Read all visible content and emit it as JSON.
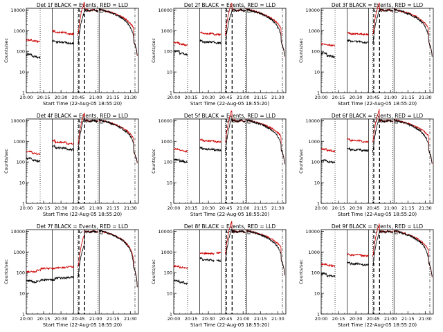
{
  "figure": {
    "xlabel_prefix": "Start Time",
    "start_label": "(22-Aug-05 18:55:20)",
    "ylabel": "Counts/sec",
    "x_ticks": [
      "20:00",
      "20:15",
      "20:30",
      "20:45",
      "21:00",
      "21:15",
      "21:30"
    ],
    "y_ticks": [
      "1",
      "10",
      "100",
      "1000",
      "10000"
    ],
    "colors": {
      "events": "#000000",
      "lld": "#cc0000",
      "axes": "#000000"
    }
  },
  "chart_data": [
    {
      "type": "line",
      "title": "Det 1f BLACK = Events, RED = LLD",
      "x_range_min": [
        0,
        97
      ],
      "ylim": [
        1,
        12000
      ],
      "log_y": true,
      "gaps": [
        [
          12,
          22.5
        ],
        [
          41,
          44.5
        ],
        [
          45.5,
          50.5
        ],
        [
          62,
          63
        ]
      ],
      "events_lvls": [
        [
          0,
          70
        ],
        [
          5,
          55
        ],
        [
          9,
          50
        ],
        [
          12.5,
          320
        ],
        [
          25,
          280
        ],
        [
          35,
          240
        ],
        [
          44,
          220
        ]
      ],
      "lld_lvls": [
        [
          0,
          350
        ],
        [
          5,
          320
        ],
        [
          9,
          300
        ],
        [
          12.5,
          950
        ],
        [
          25,
          820
        ],
        [
          35,
          700
        ],
        [
          44,
          640
        ]
      ],
      "x_end_drop": [
        [
          93,
          300
        ],
        [
          96,
          60
        ]
      ]
    },
    {
      "type": "line",
      "title": "Det 2f BLACK = Events, RED = LLD",
      "x_range_min": [
        0,
        97
      ],
      "ylim": [
        1,
        12000
      ],
      "log_y": true,
      "gaps": [
        [
          12,
          22.5
        ],
        [
          41,
          44.5
        ],
        [
          45.5,
          50.5
        ],
        [
          62,
          63
        ]
      ],
      "events_lvls": [
        [
          0,
          100
        ],
        [
          5,
          80
        ],
        [
          9,
          70
        ],
        [
          12.5,
          330
        ],
        [
          25,
          280
        ],
        [
          35,
          250
        ],
        [
          44,
          230
        ]
      ],
      "lld_lvls": [
        [
          0,
          260
        ],
        [
          5,
          220
        ],
        [
          9,
          200
        ],
        [
          12.5,
          800
        ],
        [
          25,
          720
        ],
        [
          35,
          650
        ],
        [
          44,
          620
        ]
      ],
      "x_end_drop": [
        [
          93,
          260
        ],
        [
          96,
          60
        ]
      ]
    },
    {
      "type": "line",
      "title": "Det 3f BLACK = Events, RED = LLD",
      "x_range_min": [
        0,
        97
      ],
      "ylim": [
        1,
        12000
      ],
      "log_y": true,
      "gaps": [
        [
          12,
          22.5
        ],
        [
          41,
          44.5
        ],
        [
          45.5,
          50.5
        ],
        [
          62,
          63
        ]
      ],
      "events_lvls": [
        [
          0,
          80
        ],
        [
          5,
          60
        ],
        [
          9,
          55
        ],
        [
          12.5,
          340
        ],
        [
          25,
          300
        ],
        [
          35,
          270
        ],
        [
          44,
          250
        ]
      ],
      "lld_lvls": [
        [
          0,
          220
        ],
        [
          5,
          200
        ],
        [
          9,
          190
        ],
        [
          12.5,
          780
        ],
        [
          25,
          700
        ],
        [
          35,
          650
        ],
        [
          44,
          610
        ]
      ],
      "x_end_drop": [
        [
          93,
          280
        ],
        [
          96,
          60
        ]
      ]
    },
    {
      "type": "line",
      "title": "Det 4f BLACK = Events, RED = LLD",
      "x_range_min": [
        0,
        97
      ],
      "ylim": [
        1,
        12000
      ],
      "log_y": true,
      "gaps": [
        [
          12,
          22.5
        ],
        [
          41,
          44.5
        ],
        [
          45.5,
          50.5
        ],
        [
          62,
          63
        ]
      ],
      "events_lvls": [
        [
          0,
          150
        ],
        [
          5,
          120
        ],
        [
          9,
          110
        ],
        [
          12.5,
          600
        ],
        [
          25,
          480
        ],
        [
          35,
          400
        ],
        [
          44,
          350
        ]
      ],
      "lld_lvls": [
        [
          0,
          320
        ],
        [
          5,
          260
        ],
        [
          9,
          240
        ],
        [
          12.5,
          1100
        ],
        [
          25,
          900
        ],
        [
          35,
          760
        ],
        [
          44,
          650
        ]
      ],
      "x_end_drop": [
        [
          93,
          300
        ],
        [
          96,
          90
        ]
      ]
    },
    {
      "type": "line",
      "title": "Det 5f BLACK = Events, RED = LLD",
      "x_range_min": [
        0,
        97
      ],
      "ylim": [
        1,
        12000
      ],
      "log_y": true,
      "gaps": [
        [
          12,
          22.5
        ],
        [
          41,
          44.5
        ],
        [
          45.5,
          50.5
        ],
        [
          62,
          63
        ]
      ],
      "events_lvls": [
        [
          0,
          130
        ],
        [
          5,
          110
        ],
        [
          9,
          100
        ],
        [
          12.5,
          480
        ],
        [
          25,
          420
        ],
        [
          35,
          380
        ],
        [
          44,
          340
        ]
      ],
      "lld_lvls": [
        [
          0,
          420
        ],
        [
          5,
          360
        ],
        [
          9,
          330
        ],
        [
          12.5,
          1200
        ],
        [
          25,
          1050
        ],
        [
          35,
          950
        ],
        [
          44,
          860
        ]
      ],
      "x_end_drop": [
        [
          93,
          380
        ],
        [
          96,
          80
        ]
      ]
    },
    {
      "type": "line",
      "title": "Det 6f BLACK = Events, RED = LLD",
      "x_range_min": [
        0,
        97
      ],
      "ylim": [
        1,
        12000
      ],
      "log_y": true,
      "gaps": [
        [
          12,
          22.5
        ],
        [
          41,
          44.5
        ],
        [
          45.5,
          50.5
        ],
        [
          62,
          63
        ]
      ],
      "events_lvls": [
        [
          0,
          120
        ],
        [
          5,
          100
        ],
        [
          9,
          95
        ],
        [
          12.5,
          430
        ],
        [
          25,
          390
        ],
        [
          35,
          360
        ],
        [
          44,
          330
        ]
      ],
      "lld_lvls": [
        [
          0,
          420
        ],
        [
          5,
          360
        ],
        [
          9,
          330
        ],
        [
          12.5,
          1300
        ],
        [
          25,
          1100
        ],
        [
          35,
          950
        ],
        [
          44,
          880
        ]
      ],
      "x_end_drop": [
        [
          93,
          350
        ],
        [
          96,
          80
        ]
      ]
    },
    {
      "type": "line",
      "title": "Det 7f BLACK = Events, RED = LLD",
      "x_range_min": [
        0,
        97
      ],
      "ylim": [
        1,
        12000
      ],
      "log_y": true,
      "gaps": [
        [
          41,
          44.5
        ],
        [
          45.5,
          50.5
        ],
        [
          62,
          63
        ]
      ],
      "events_lvls": [
        [
          0,
          40
        ],
        [
          5,
          35
        ],
        [
          9,
          40
        ],
        [
          12.5,
          45
        ],
        [
          25,
          55
        ],
        [
          35,
          60
        ],
        [
          44,
          60
        ]
      ],
      "lld_lvls": [
        [
          0,
          110
        ],
        [
          5,
          110
        ],
        [
          9,
          130
        ],
        [
          12.5,
          160
        ],
        [
          25,
          175
        ],
        [
          35,
          190
        ],
        [
          44,
          180
        ]
      ],
      "x_end_drop": [
        [
          93,
          180
        ],
        [
          96,
          20
        ]
      ]
    },
    {
      "type": "line",
      "title": "Det 8f BLACK = Events, RED = LLD",
      "x_range_min": [
        0,
        97
      ],
      "ylim": [
        1,
        12000
      ],
      "log_y": true,
      "gaps": [
        [
          12,
          22.5
        ],
        [
          35,
          37
        ],
        [
          41,
          44.5
        ],
        [
          45.5,
          50.5
        ],
        [
          62,
          63
        ]
      ],
      "events_lvls": [
        [
          0,
          40
        ],
        [
          5,
          35
        ],
        [
          9,
          30
        ],
        [
          12.5,
          500
        ],
        [
          25,
          420
        ],
        [
          33,
          380
        ],
        [
          37,
          380
        ],
        [
          44,
          360
        ]
      ],
      "lld_lvls": [
        [
          0,
          200
        ],
        [
          5,
          180
        ],
        [
          9,
          170
        ],
        [
          12.5,
          900
        ],
        [
          25,
          850
        ],
        [
          33,
          820
        ],
        [
          37,
          900
        ],
        [
          44,
          820
        ]
      ],
      "x_end_drop": [
        [
          93,
          380
        ],
        [
          96,
          80
        ]
      ]
    },
    {
      "type": "line",
      "title": "Det 9f BLACK = Events, RED = LLD",
      "x_range_min": [
        0,
        97
      ],
      "ylim": [
        1,
        12000
      ],
      "log_y": true,
      "gaps": [
        [
          12,
          22.5
        ],
        [
          41,
          44.5
        ],
        [
          45.5,
          50.5
        ],
        [
          62,
          63
        ]
      ],
      "events_lvls": [
        [
          0,
          90
        ],
        [
          5,
          70
        ],
        [
          9,
          65
        ],
        [
          12.5,
          300
        ],
        [
          25,
          270
        ],
        [
          35,
          240
        ],
        [
          44,
          220
        ]
      ],
      "lld_lvls": [
        [
          0,
          250
        ],
        [
          5,
          220
        ],
        [
          9,
          210
        ],
        [
          12.5,
          800
        ],
        [
          25,
          720
        ],
        [
          35,
          650
        ],
        [
          44,
          600
        ]
      ],
      "x_end_drop": [
        [
          93,
          300
        ],
        [
          96,
          60
        ]
      ]
    }
  ]
}
